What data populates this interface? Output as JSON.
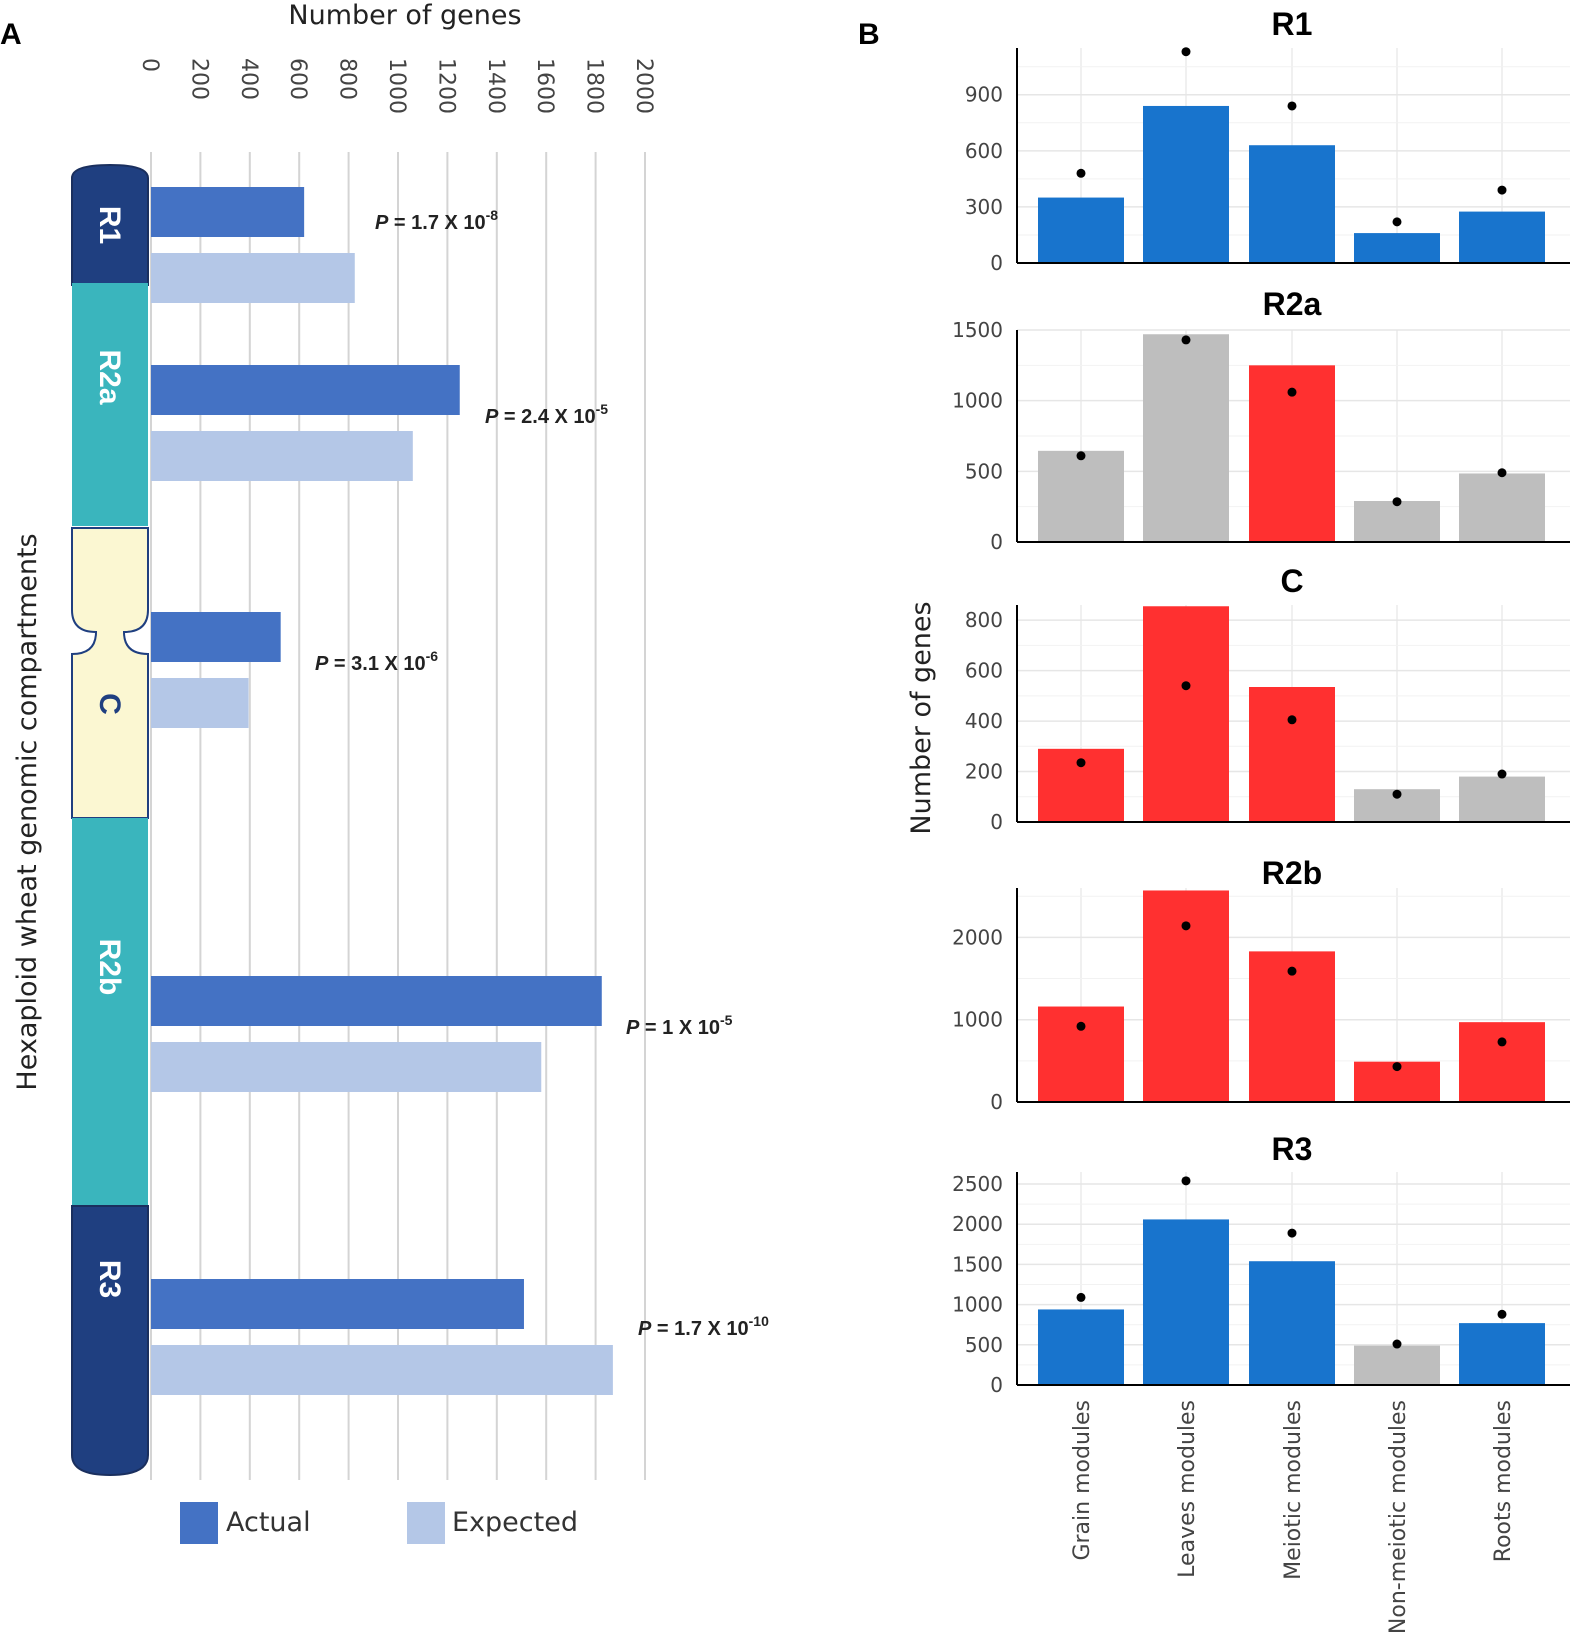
{
  "panel_a_label": "A",
  "panel_b_label": "B",
  "chart_data": [
    {
      "type": "bar",
      "orientation": "horizontal",
      "panel": "A",
      "title": "",
      "xlabel": "Number of genes",
      "ylabel": "Hexaploid wheat genomic compartments",
      "xlim": [
        0,
        2000
      ],
      "xticks": [
        "0",
        "200",
        "400",
        "600",
        "800",
        "1000",
        "1200",
        "1400",
        "1600",
        "1800",
        "2000"
      ],
      "categories": [
        "R1",
        "R2a",
        "C",
        "R2b",
        "R3"
      ],
      "series": [
        {
          "name": "Actual",
          "color": "#4472C4",
          "values": [
            620,
            1250,
            525,
            1825,
            1510
          ]
        },
        {
          "name": "Expected",
          "color": "#B4C7E7",
          "values": [
            825,
            1060,
            395,
            1580,
            1870
          ]
        }
      ],
      "p_values": [
        {
          "label": "P",
          "text": " = 1.7 X 10",
          "exp": "-8"
        },
        {
          "label": "P",
          "text": " = 2.4 X 10",
          "exp": "-5"
        },
        {
          "label": "P",
          "text": " = 3.1 X 10",
          "exp": "-6"
        },
        {
          "label": "P",
          "text": " = 1 X 10",
          "exp": "-5"
        },
        {
          "label": "P",
          "text": " = 1.7 X 10",
          "exp": "-10"
        }
      ],
      "legend": [
        "Actual",
        "Expected"
      ],
      "legend_position": "bottom",
      "grid": true
    },
    {
      "type": "bar",
      "panel": "B",
      "ylabel": "Number of genes",
      "categories": [
        "Grain modules",
        "Leaves modules",
        "Meiotic modules",
        "Non-meiotic modules",
        "Roots modules"
      ],
      "colors": {
        "blue": "#1874CD",
        "red": "#FF3030",
        "grey": "#BEBEBE"
      },
      "facets": [
        {
          "title": "R1",
          "ylim": [
            0,
            1150
          ],
          "yticks": [
            0,
            300,
            600,
            900
          ],
          "values": [
            350,
            840,
            630,
            160,
            275
          ],
          "expected": [
            480,
            1130,
            840,
            220,
            390
          ],
          "colors": [
            "blue",
            "blue",
            "blue",
            "blue",
            "blue"
          ]
        },
        {
          "title": "R2a",
          "ylim": [
            0,
            1500
          ],
          "yticks": [
            0,
            500,
            1000,
            1500
          ],
          "values": [
            645,
            1470,
            1250,
            290,
            485
          ],
          "expected": [
            610,
            1430,
            1060,
            285,
            490
          ],
          "colors": [
            "grey",
            "grey",
            "red",
            "grey",
            "grey"
          ]
        },
        {
          "title": "C",
          "ylim": [
            0,
            860
          ],
          "yticks": [
            0,
            200,
            400,
            600,
            800
          ],
          "values": [
            290,
            855,
            535,
            130,
            180
          ],
          "expected": [
            235,
            540,
            405,
            110,
            190
          ],
          "colors": [
            "red",
            "red",
            "red",
            "grey",
            "grey"
          ]
        },
        {
          "title": "R2b",
          "ylim": [
            0,
            2600
          ],
          "yticks": [
            0,
            1000,
            2000
          ],
          "values": [
            1160,
            2570,
            1830,
            490,
            970
          ],
          "expected": [
            920,
            2140,
            1590,
            430,
            730
          ],
          "colors": [
            "red",
            "red",
            "red",
            "red",
            "red"
          ]
        },
        {
          "title": "R3",
          "ylim": [
            0,
            2650
          ],
          "yticks": [
            0,
            500,
            1000,
            1500,
            2000,
            2500
          ],
          "values": [
            940,
            2060,
            1540,
            490,
            770
          ],
          "expected": [
            1090,
            2540,
            1890,
            510,
            880
          ],
          "colors": [
            "blue",
            "blue",
            "blue",
            "grey",
            "blue"
          ]
        }
      ]
    }
  ]
}
